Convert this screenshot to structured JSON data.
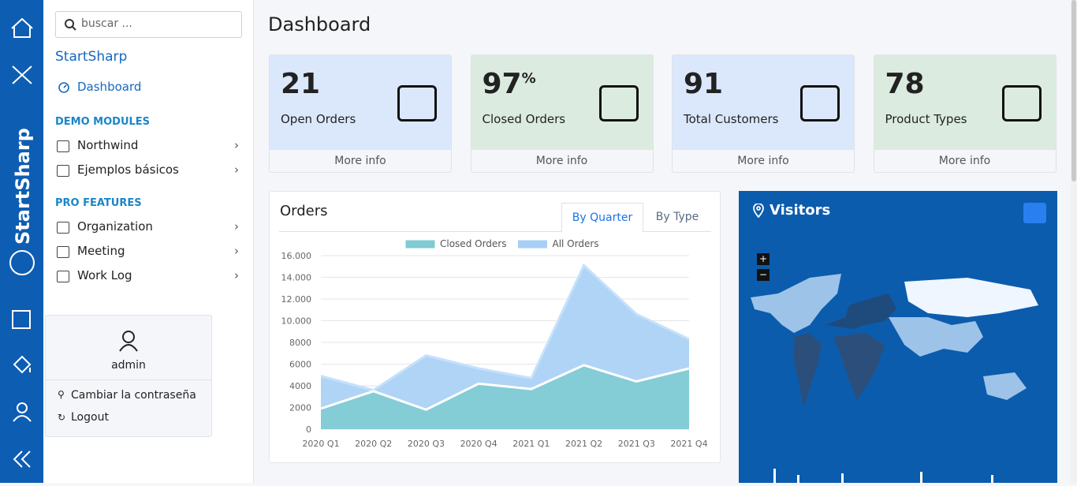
{
  "brand": "StartSharp",
  "sidebar": {
    "search_placeholder": "buscar ...",
    "app_name": "StartSharp",
    "dashboard": "Dashboard",
    "sections": [
      {
        "title": "DEMO MODULES",
        "items": [
          "Northwind",
          "Ejemplos básicos"
        ]
      },
      {
        "title": "PRO FEATURES",
        "items": [
          "Organization",
          "Meeting",
          "Work Log"
        ]
      }
    ],
    "user": {
      "name": "admin",
      "links": [
        "Cambiar la contraseña",
        "Logout"
      ]
    }
  },
  "page_title": "Dashboard",
  "cards": [
    {
      "value": 21,
      "label": "Open Orders",
      "link": "More info"
    },
    {
      "value": 97,
      "unit": "%",
      "label": "Closed Orders",
      "link": "More info"
    },
    {
      "value": 91,
      "label": "Total Customers",
      "link": "More info"
    },
    {
      "value": 78,
      "label": "Product Types",
      "link": "More info"
    }
  ],
  "orders": {
    "title": "Orders",
    "tabs": [
      "By Quarter",
      "By Type"
    ]
  },
  "chart_data": {
    "type": "area",
    "categories": [
      "2020 Q1",
      "2020 Q2",
      "2020 Q3",
      "2020 Q4",
      "2021 Q1",
      "2021 Q2",
      "2021 Q3",
      "2021 Q4"
    ],
    "series": [
      {
        "name": "Closed Orders",
        "color": "#80cbd3",
        "values": [
          1900,
          3500,
          1800,
          4200,
          3700,
          5900,
          4400,
          5600
        ]
      },
      {
        "name": "All Orders",
        "color": "#a6cff5",
        "values": [
          4900,
          3600,
          6800,
          5600,
          4700,
          15100,
          10600,
          8300
        ]
      }
    ],
    "ylim": [
      0,
      16000
    ],
    "yticks": [
      0,
      2000,
      4000,
      6000,
      8000,
      {
        "value": 10000,
        "label": "10.000"
      },
      {
        "value": 12000,
        "label": "12.000"
      },
      {
        "value": 14000,
        "label": "14.000"
      },
      {
        "value": 16000,
        "label": "16.000"
      }
    ],
    "grid": true
  },
  "visitors": {
    "title": "Visitors",
    "zoom": [
      "+",
      "−"
    ]
  }
}
